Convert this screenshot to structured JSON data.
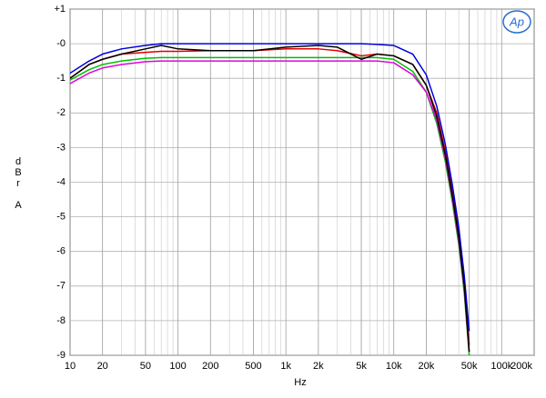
{
  "chart_data": {
    "type": "line",
    "x_label": "Hz",
    "y_label": "dBr A",
    "logo": "Ap",
    "x_scale": "log",
    "grid": true,
    "xlim": [
      10,
      200000
    ],
    "xticks": [
      10,
      20,
      50,
      100,
      200,
      500,
      {
        "value": 1000,
        "label": "1k"
      },
      {
        "value": 2000,
        "label": "2k"
      },
      {
        "value": 5000,
        "label": "5k"
      },
      {
        "value": 10000,
        "label": "10k"
      },
      {
        "value": 20000,
        "label": "20k"
      },
      {
        "value": 50000,
        "label": "50k"
      },
      {
        "value": 100000,
        "label": "100k"
      },
      {
        "value": 200000,
        "label": "200k"
      }
    ],
    "ylim": [
      -9,
      1
    ],
    "yticks": [
      {
        "value": 1,
        "label": "+1"
      },
      {
        "value": 0,
        "label": "-0"
      },
      -1,
      -2,
      -3,
      -4,
      -5,
      -6,
      -7,
      -8,
      -9
    ],
    "x": [
      10,
      15,
      20,
      30,
      50,
      70,
      100,
      200,
      500,
      1000,
      2000,
      3000,
      5000,
      7000,
      10000,
      15000,
      20000,
      25000,
      30000,
      35000,
      40000,
      45000,
      50000
    ],
    "series": [
      {
        "color": "#e00000",
        "values": [
          -1.0,
          -0.6,
          -0.45,
          -0.3,
          -0.25,
          -0.22,
          -0.22,
          -0.2,
          -0.2,
          -0.15,
          -0.15,
          -0.2,
          -0.35,
          -0.3,
          -0.35,
          -0.6,
          -1.2,
          -2.0,
          -3.1,
          -4.3,
          -5.5,
          -6.9,
          -8.7
        ]
      },
      {
        "color": "#00c000",
        "values": [
          -1.05,
          -0.75,
          -0.6,
          -0.5,
          -0.42,
          -0.4,
          -0.4,
          -0.4,
          -0.4,
          -0.4,
          -0.4,
          -0.4,
          -0.4,
          -0.4,
          -0.45,
          -0.8,
          -1.4,
          -2.3,
          -3.4,
          -4.6,
          -5.8,
          -7.2,
          -9.0
        ]
      },
      {
        "color": "#e000e0",
        "values": [
          -1.15,
          -0.85,
          -0.7,
          -0.6,
          -0.52,
          -0.5,
          -0.5,
          -0.5,
          -0.5,
          -0.5,
          -0.5,
          -0.5,
          -0.5,
          -0.5,
          -0.55,
          -0.9,
          -1.4,
          -2.2,
          -3.3,
          -4.5,
          -5.7,
          -7.1,
          -8.9
        ]
      },
      {
        "color": "#0000e0",
        "values": [
          -0.85,
          -0.5,
          -0.3,
          -0.15,
          -0.05,
          0,
          0,
          0,
          0,
          0,
          0,
          0,
          0,
          -0.02,
          -0.05,
          -0.3,
          -0.9,
          -1.8,
          -2.9,
          -4.1,
          -5.3,
          -6.7,
          -8.3
        ]
      },
      {
        "color": "#000000",
        "values": [
          -1.0,
          -0.6,
          -0.45,
          -0.3,
          -0.15,
          -0.05,
          -0.15,
          -0.2,
          -0.2,
          -0.1,
          -0.05,
          -0.1,
          -0.45,
          -0.3,
          -0.35,
          -0.6,
          -1.2,
          -2.1,
          -3.2,
          -4.4,
          -5.6,
          -7.0,
          -8.9
        ]
      }
    ]
  }
}
